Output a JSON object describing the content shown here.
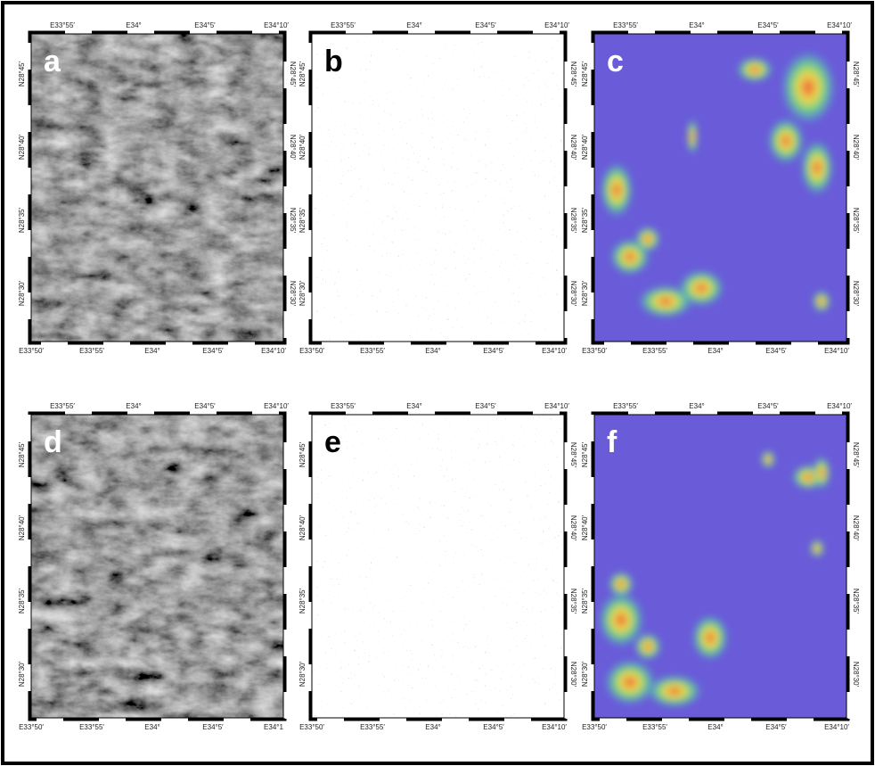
{
  "panels": [
    {
      "label": "a",
      "top": [
        "E33°55′",
        "E34°",
        "E34°5′",
        "E34°10′"
      ],
      "bottom": [
        "E33°50′",
        "E33°55′",
        "E34°",
        "E34°5′",
        "E34°10′"
      ],
      "left": [
        "N28°45′",
        "N28°40′",
        "N28°35′",
        "N28°30′"
      ],
      "right": [
        "N28°45′",
        "N28°40′",
        "N28°35′",
        "N28°30′"
      ]
    },
    {
      "label": "b",
      "top": [
        "E33°55′",
        "E34°",
        "E34°5′",
        "E34°10′"
      ],
      "bottom": [
        "E33°50′",
        "E33°55′",
        "E34°",
        "E34°5′",
        "E34°10′"
      ],
      "left": [
        "N28°45′",
        "N28°40′",
        "N28°35′",
        "N28°30′"
      ],
      "right": [
        "N28°45′",
        "N28°40′",
        "N28°35′",
        "N28°30′"
      ]
    },
    {
      "label": "c",
      "top": [
        "E33°55′",
        "E34°",
        "E34°5′",
        "E34°10′"
      ],
      "bottom": [
        "E33°50′",
        "E33°55′",
        "E34°",
        "E34°5′",
        "E34°10′"
      ],
      "left": [
        "N28°45′",
        "N28°40′",
        "N28°35′",
        "N28°30′"
      ],
      "right": [
        "N28°45′",
        "N28°40′",
        "N28°35′",
        "N28°30′"
      ]
    },
    {
      "label": "d",
      "top": [
        "E33°55′",
        "E34°",
        "E34°5′",
        "E34°10′"
      ],
      "bottom": [
        "E33°50′",
        "E33°55′",
        "E34°",
        "E34°5′",
        "E34°1"
      ],
      "left": [
        "N28°45′",
        "N28°40′",
        "N28°35′",
        "N28°30′"
      ],
      "right": []
    },
    {
      "label": "e",
      "top": [
        "E33°55′",
        "E34°",
        "E34°5′",
        "E34°10′"
      ],
      "bottom": [
        "E33°50′",
        "E33°55′",
        "E34°",
        "E34°5′",
        "E34°10′"
      ],
      "left": [
        "N28°45′",
        "N28°40′",
        "N28°35′",
        "N28°30′"
      ],
      "right": [
        "N28°45′",
        "N28°40′",
        "N28°35′",
        "N28°30′"
      ]
    },
    {
      "label": "f",
      "top": [
        "E33°55′",
        "E34°",
        "E34°5′",
        "E34°10′"
      ],
      "bottom": [
        "E33°50′",
        "E33°55′",
        "E34°",
        "E34°5′",
        "E34°10′"
      ],
      "left": [
        "N28°45′",
        "N28°40′",
        "N28°35′",
        "N28°30′"
      ],
      "right": [
        "N28°45′",
        "N28°40′",
        "N28°35′",
        "N28°30′"
      ]
    }
  ]
}
